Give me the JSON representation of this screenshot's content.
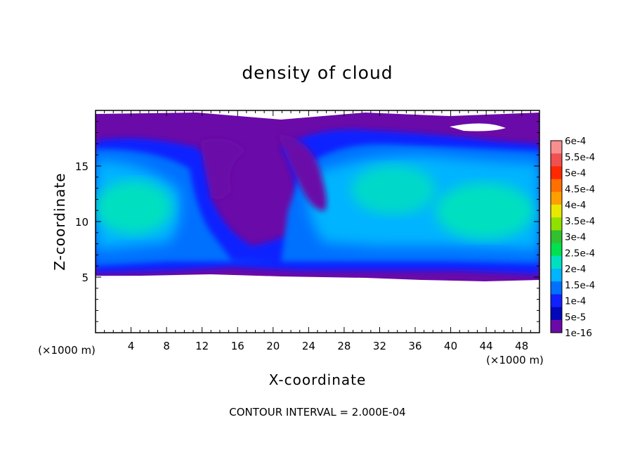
{
  "chart_data": {
    "type": "heatmap",
    "title": "density of cloud",
    "xlabel": "X-coordinate",
    "ylabel": "Z-coordinate",
    "x_unit": "(×1000 m)",
    "y_unit": "(×1000 m)",
    "xlim": [
      0,
      50
    ],
    "ylim": [
      0,
      20
    ],
    "x_ticks": [
      "4",
      "8",
      "12",
      "16",
      "20",
      "24",
      "28",
      "32",
      "36",
      "40",
      "44",
      "48"
    ],
    "y_ticks": [
      "5",
      "10",
      "15"
    ],
    "footer": "CONTOUR INTERVAL = 2.000E-04",
    "legend_position": "right",
    "colorbar": {
      "labels": [
        "6e-4",
        "5.5e-4",
        "5e-4",
        "4.5e-4",
        "4e-4",
        "3.5e-4",
        "3e-4",
        "2.5e-4",
        "2e-4",
        "1.5e-4",
        "1e-4",
        "5e-5",
        "1e-16"
      ],
      "colors": [
        "#f88f8f",
        "#f05050",
        "#ff2800",
        "#ff7000",
        "#ffa000",
        "#e8e800",
        "#90e000",
        "#30c030",
        "#00e050",
        "#00e0c0",
        "#00b4ff",
        "#0070ff",
        "#1020ff",
        "#0008b8",
        "#6a0aa8"
      ]
    },
    "field_description_regions": {
      "cloud_base_km": 5,
      "cloud_top_km": 19.5,
      "max_value_region": "1.5e-4 to 2e-4 (cyan) in left and right cells"
    }
  }
}
